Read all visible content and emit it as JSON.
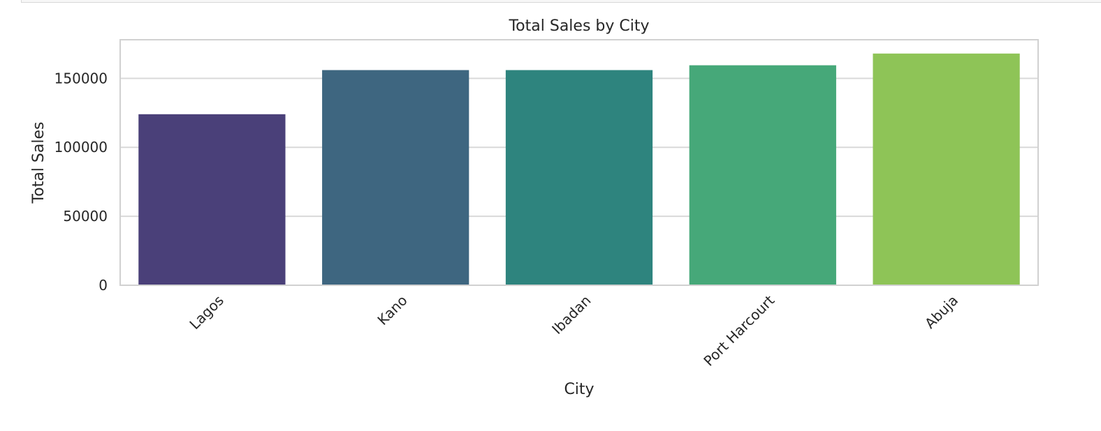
{
  "chart_data": {
    "type": "bar",
    "title": "Total Sales by City",
    "xlabel": "City",
    "ylabel": "Total Sales",
    "categories": [
      "Lagos",
      "Kano",
      "Ibadan",
      "Port Harcourt",
      "Abuja"
    ],
    "values": [
      124000,
      156000,
      156000,
      159500,
      168000
    ],
    "colors": [
      "#4a4079",
      "#3e6680",
      "#2e847e",
      "#46a879",
      "#8ec457"
    ],
    "ylim": [
      0,
      178000
    ],
    "yticks": [
      0,
      50000,
      100000,
      150000
    ],
    "ytick_labels": [
      "0",
      "50000",
      "100000",
      "150000"
    ],
    "grid": true,
    "grid_color": "#d9d9d9",
    "frame_color": "#d1d1d1"
  }
}
